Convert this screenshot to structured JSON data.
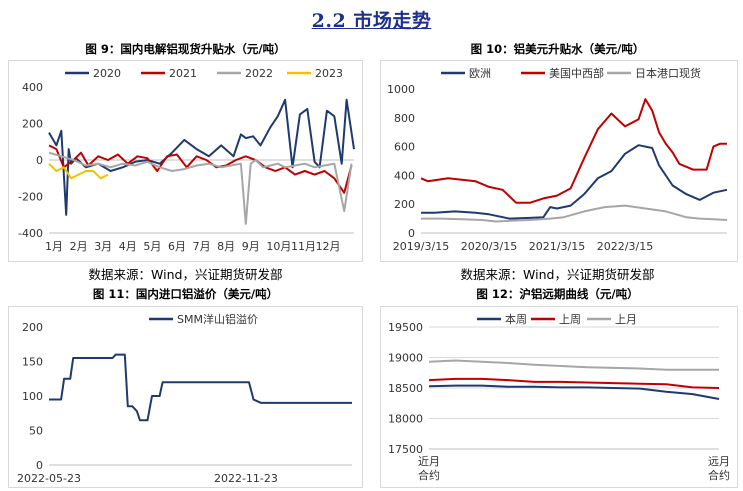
{
  "section_title": "2.2 市场走势",
  "figures": [
    {
      "title": "图 9：国内电解铝现货升贴水（元/吨）",
      "source": ""
    },
    {
      "title": "图 10：铝美元升贴水（美元/吨）",
      "source": ""
    },
    {
      "title": "图 11：国内进口铝溢价（美元/吨）",
      "source": "数据来源：Wind，兴证期货研发部"
    },
    {
      "title": "图 12：沪铝远期曲线（元/吨）",
      "source": "数据来源：Wind，兴证期货研发部"
    }
  ],
  "colors": {
    "navy": "#1f3a6e",
    "red": "#c00000",
    "gray": "#a6a6a6",
    "yellow": "#f2c200"
  },
  "chart_data": [
    {
      "type": "line",
      "legend_position": "top",
      "yticks": [
        "400",
        "200",
        "0",
        "-200",
        "-400"
      ],
      "ylim": [
        -400,
        400
      ],
      "categories": [
        "1月",
        "2月",
        "3月",
        "4月",
        "5月",
        "6月",
        "7月",
        "8月",
        "9月",
        "10月",
        "11月",
        "12月"
      ],
      "series": [
        {
          "name": "2020",
          "color": "#1f3a6e",
          "x": [
            0,
            0.3,
            0.5,
            0.7,
            0.8,
            0.9,
            1.1,
            1.5,
            2,
            2.5,
            3,
            3.5,
            4,
            4.5,
            5,
            5.5,
            6,
            6.5,
            7,
            7.5,
            7.8,
            8,
            8.3,
            8.6,
            9,
            9.3,
            9.6,
            9.9,
            10.2,
            10.5,
            10.8,
            11,
            11.3,
            11.6,
            11.9,
            12.1,
            12.4
          ],
          "values": [
            150,
            80,
            160,
            -300,
            60,
            -20,
            10,
            -40,
            -20,
            -60,
            -40,
            -10,
            0,
            -20,
            40,
            110,
            60,
            20,
            80,
            20,
            140,
            120,
            130,
            80,
            180,
            240,
            330,
            -40,
            250,
            280,
            -10,
            -40,
            270,
            240,
            -20,
            330,
            60
          ]
        },
        {
          "name": "2021",
          "color": "#c00000",
          "x": [
            0,
            0.3,
            0.6,
            1,
            1.3,
            1.6,
            2,
            2.4,
            2.8,
            3.2,
            3.6,
            4,
            4.4,
            4.8,
            5.2,
            5.6,
            6,
            6.4,
            6.8,
            7.2,
            7.6,
            8,
            8.4,
            8.8,
            9.2,
            9.6,
            10,
            10.4,
            10.8,
            11.2,
            11.6,
            12,
            12.3
          ],
          "values": [
            80,
            60,
            -40,
            0,
            40,
            -30,
            20,
            0,
            30,
            -20,
            20,
            10,
            -60,
            20,
            30,
            -40,
            20,
            0,
            -40,
            -30,
            0,
            20,
            0,
            -40,
            -60,
            -40,
            -80,
            -60,
            -80,
            -60,
            -100,
            -180,
            -30
          ]
        },
        {
          "name": "2022",
          "color": "#a6a6a6",
          "x": [
            0,
            0.5,
            1,
            1.5,
            2,
            2.5,
            3,
            3.5,
            4,
            4.5,
            5,
            5.5,
            6,
            6.5,
            7,
            7.4,
            7.8,
            8,
            8.2,
            8.4,
            8.7,
            9,
            9.3,
            9.6,
            10,
            10.4,
            10.8,
            11.2,
            11.6,
            12,
            12.3
          ],
          "values": [
            40,
            20,
            0,
            -30,
            -20,
            -40,
            -20,
            -30,
            -10,
            -40,
            -60,
            -50,
            -30,
            -20,
            -40,
            -30,
            -20,
            -350,
            -20,
            0,
            -40,
            -30,
            -20,
            -40,
            -30,
            -20,
            -40,
            -30,
            -20,
            -280,
            -20
          ]
        },
        {
          "name": "2023",
          "color": "#f2c200",
          "x": [
            0,
            0.3,
            0.6,
            0.9,
            1.2,
            1.5,
            1.8,
            2.1,
            2.4
          ],
          "values": [
            -20,
            -60,
            -40,
            -100,
            -80,
            -60,
            -60,
            -100,
            -80
          ]
        }
      ]
    },
    {
      "type": "line",
      "legend_position": "top",
      "yticks": [
        "1000",
        "800",
        "600",
        "400",
        "200",
        "0"
      ],
      "ylim": [
        0,
        1000
      ],
      "categories": [
        "2019/3/15",
        "2020/3/15",
        "2021/3/15",
        "2022/3/15"
      ],
      "series": [
        {
          "name": "欧洲",
          "color": "#1f3a6e",
          "x": [
            0,
            0.2,
            0.5,
            0.8,
            1,
            1.3,
            1.6,
            1.8,
            1.9,
            2,
            2.2,
            2.4,
            2.6,
            2.8,
            3,
            3.2,
            3.4,
            3.5,
            3.7,
            3.9,
            4.1,
            4.3,
            4.5
          ],
          "values": [
            140,
            140,
            150,
            140,
            130,
            100,
            105,
            110,
            180,
            170,
            190,
            270,
            380,
            430,
            550,
            610,
            590,
            470,
            330,
            270,
            230,
            280,
            300
          ]
        },
        {
          "name": "美国中西部",
          "color": "#c00000",
          "x": [
            0,
            0.1,
            0.4,
            0.8,
            1,
            1.2,
            1.4,
            1.6,
            1.8,
            2,
            2.2,
            2.4,
            2.6,
            2.8,
            3,
            3.2,
            3.3,
            3.4,
            3.5,
            3.6,
            3.7,
            3.8,
            4,
            4.2,
            4.3,
            4.4,
            4.5
          ],
          "values": [
            380,
            360,
            380,
            360,
            320,
            300,
            210,
            210,
            240,
            260,
            310,
            520,
            720,
            830,
            740,
            790,
            930,
            850,
            700,
            620,
            560,
            480,
            440,
            440,
            600,
            620,
            620
          ]
        },
        {
          "name": "日本港口现货",
          "color": "#a6a6a6",
          "x": [
            0,
            0.3,
            0.6,
            0.9,
            1.1,
            1.3,
            1.6,
            1.9,
            2.1,
            2.4,
            2.7,
            3,
            3.3,
            3.6,
            3.9,
            4.1,
            4.3,
            4.5
          ],
          "values": [
            100,
            100,
            95,
            90,
            80,
            85,
            90,
            100,
            110,
            150,
            180,
            190,
            170,
            150,
            110,
            100,
            95,
            90
          ]
        }
      ]
    },
    {
      "type": "line",
      "legend_position": "top",
      "yticks": [
        "200",
        "150",
        "100",
        "50",
        "0"
      ],
      "ylim": [
        0,
        200
      ],
      "categories": [
        "2022-05-23",
        "2022-11-23"
      ],
      "series": [
        {
          "name": "SMM洋山铝溢价",
          "color": "#1f3a6e",
          "x": [
            0,
            0.08,
            0.1,
            0.14,
            0.16,
            0.2,
            0.42,
            0.44,
            0.5,
            0.52,
            0.55,
            0.58,
            0.6,
            0.65,
            0.68,
            0.73,
            0.75,
            0.79,
            0.81,
            0.85,
            1.2,
            1.32,
            1.35,
            1.4,
            1.6,
            2.0
          ],
          "values": [
            95,
            95,
            125,
            125,
            155,
            155,
            155,
            160,
            160,
            85,
            85,
            78,
            65,
            65,
            100,
            100,
            120,
            120,
            120,
            120,
            120,
            120,
            95,
            90,
            90,
            90
          ]
        }
      ]
    },
    {
      "type": "line",
      "legend_position": "top",
      "yticks": [
        "19500",
        "19000",
        "18500",
        "18000",
        "17500"
      ],
      "ylim": [
        17500,
        19500
      ],
      "categories": [
        "近月合约",
        "远月合约"
      ],
      "series": [
        {
          "name": "本周",
          "color": "#1f3a6e",
          "x": [
            0,
            1,
            2,
            3,
            4,
            5,
            6,
            7,
            8,
            9,
            10,
            11
          ],
          "values": [
            18530,
            18540,
            18540,
            18520,
            18520,
            18510,
            18510,
            18500,
            18490,
            18440,
            18400,
            18320
          ]
        },
        {
          "name": "上周",
          "color": "#c00000",
          "x": [
            0,
            1,
            2,
            3,
            4,
            5,
            6,
            7,
            8,
            9,
            10,
            11
          ],
          "values": [
            18630,
            18650,
            18650,
            18630,
            18600,
            18600,
            18590,
            18580,
            18570,
            18560,
            18510,
            18500
          ]
        },
        {
          "name": "上月",
          "color": "#a6a6a6",
          "x": [
            0,
            1,
            2,
            3,
            4,
            5,
            6,
            7,
            8,
            9,
            10,
            11
          ],
          "values": [
            18930,
            18950,
            18930,
            18910,
            18880,
            18860,
            18840,
            18830,
            18820,
            18800,
            18800,
            18800
          ]
        }
      ]
    }
  ]
}
